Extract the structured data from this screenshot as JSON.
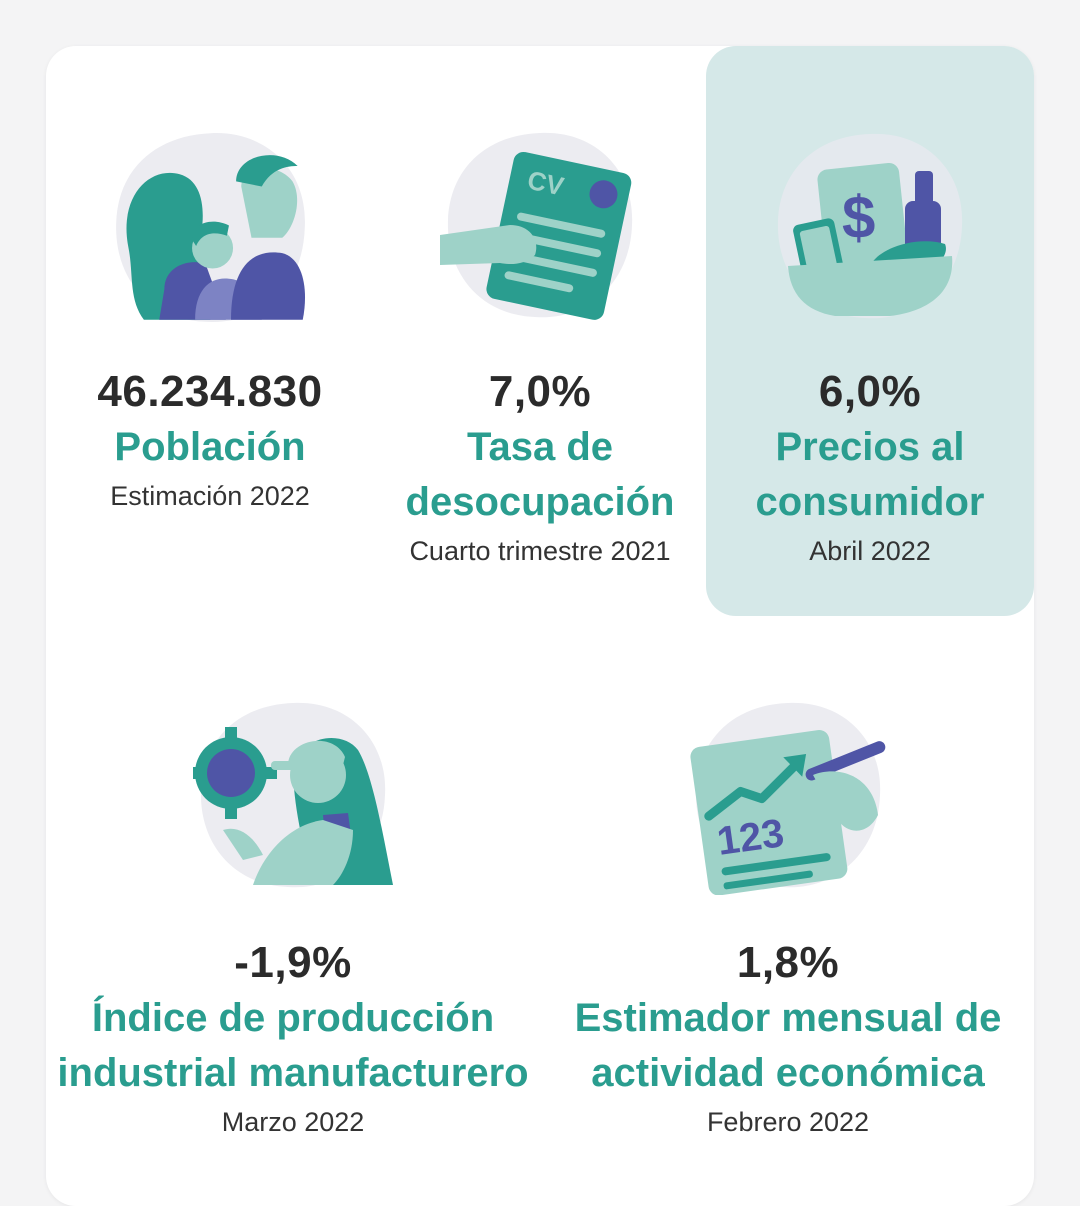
{
  "colors": {
    "teal": "#2a9d8f",
    "teal_light": "#9ed2c8",
    "indigo": "#4f55a6",
    "blob": "#ececf1",
    "highlight_bg": "#d5e8e8"
  },
  "stats": [
    {
      "value": "46.234.830",
      "label": "Población",
      "period": "Estimación 2022",
      "icon": "population-icon"
    },
    {
      "value": "7,0%",
      "label_lines": [
        "Tasa de",
        "desocupación"
      ],
      "period": "Cuarto trimestre 2021",
      "icon": "cv-icon"
    },
    {
      "value": "6,0%",
      "label_lines": [
        "Precios al",
        "consumidor"
      ],
      "period": "Abril 2022",
      "icon": "shopping-basket-icon",
      "highlighted": true
    },
    {
      "value": "-1,9%",
      "label_lines": [
        "Índice de producción",
        "industrial manufacturero"
      ],
      "period": "Marzo 2022",
      "icon": "gear-worker-icon"
    },
    {
      "value": "1,8%",
      "label_lines": [
        "Estimador mensual de",
        "actividad económica"
      ],
      "period": "Febrero 2022",
      "icon": "economic-chart-icon",
      "icon_text": "123"
    }
  ]
}
